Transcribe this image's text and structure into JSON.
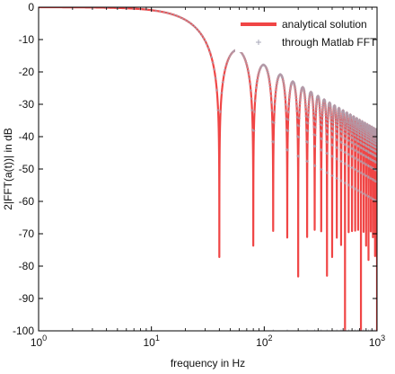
{
  "chart_data": {
    "type": "line",
    "title": "",
    "xlabel": "frequency in Hz",
    "ylabel": "2|FFT(a(t))| in dB",
    "xscale": "log",
    "xlim": [
      1,
      1000
    ],
    "ylim": [
      -100,
      0
    ],
    "xticks": [
      1,
      10,
      100,
      1000
    ],
    "xtick_labels": [
      {
        "base": "10",
        "exp": "0"
      },
      {
        "base": "10",
        "exp": "1"
      },
      {
        "base": "10",
        "exp": "2"
      },
      {
        "base": "10",
        "exp": "3"
      }
    ],
    "yticks": [
      0,
      -10,
      -20,
      -30,
      -40,
      -50,
      -60,
      -70,
      -80,
      -90,
      -100
    ],
    "ytick_labels": [
      "0",
      "-10",
      "-20",
      "-30",
      "-40",
      "-50",
      "-60",
      "-70",
      "-80",
      "-90",
      "-100"
    ],
    "grid": false,
    "legend_position": "top-right",
    "series": [
      {
        "name": "analytical solution",
        "style": "line",
        "color": "#f04545",
        "description_points": {
          "x": [
            1,
            5,
            10,
            15,
            20,
            25,
            30,
            35,
            40,
            60,
            80,
            100,
            120,
            150,
            200,
            300,
            500,
            1000
          ],
          "y": [
            0,
            -0.1,
            -0.5,
            -1.5,
            -3,
            -5,
            -8,
            -15,
            -100,
            -13,
            -100,
            -18,
            -100,
            -21,
            -24,
            -28,
            -33,
            -38
          ]
        }
      },
      {
        "name": "through Matlab FFT",
        "style": "markers",
        "marker": "+",
        "color": "#a8a8b8",
        "description_points": {
          "x": [
            1,
            10,
            20,
            40,
            60,
            100,
            200,
            300,
            500,
            1000
          ],
          "y": [
            0,
            -0.5,
            -3,
            -100,
            -13,
            -18,
            -24,
            -28,
            -33,
            -38
          ]
        }
      }
    ]
  }
}
